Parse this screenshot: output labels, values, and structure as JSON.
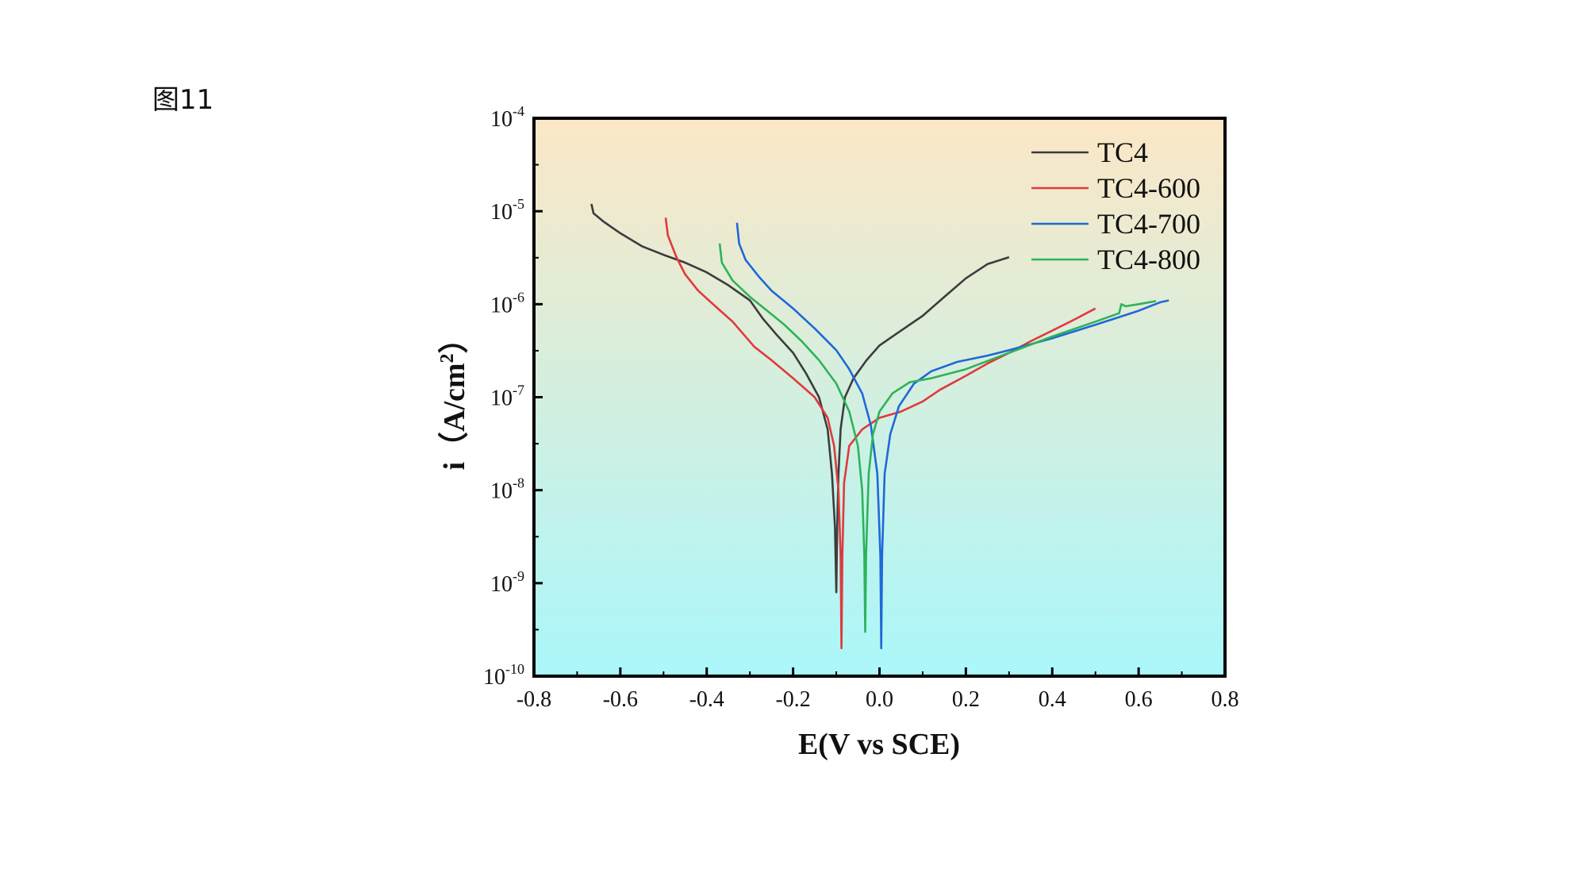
{
  "figure_label": "图11",
  "chart_data": {
    "type": "line",
    "title": "",
    "xlabel": "E(V vs SCE)",
    "ylabel_main": "i（A/cm",
    "ylabel_sup": "2",
    "ylabel_close": "）",
    "xlim": [
      -0.8,
      0.8
    ],
    "ylim_log10": [
      -10,
      -4
    ],
    "y_scale": "log",
    "x_ticks": [
      {
        "value": -0.8,
        "label": "-0.8"
      },
      {
        "value": -0.6,
        "label": "-0.6"
      },
      {
        "value": -0.4,
        "label": "-0.4"
      },
      {
        "value": -0.2,
        "label": "-0.2"
      },
      {
        "value": 0.0,
        "label": "0.0"
      },
      {
        "value": 0.2,
        "label": "0.2"
      },
      {
        "value": 0.4,
        "label": "0.4"
      },
      {
        "value": 0.6,
        "label": "0.6"
      },
      {
        "value": 0.8,
        "label": "0.8"
      }
    ],
    "y_ticks": [
      {
        "exp": -4,
        "base": "10",
        "sup": "-4"
      },
      {
        "exp": -5,
        "base": "10",
        "sup": "-5"
      },
      {
        "exp": -6,
        "base": "10",
        "sup": "-6"
      },
      {
        "exp": -7,
        "base": "10",
        "sup": "-7"
      },
      {
        "exp": -8,
        "base": "10",
        "sup": "-8"
      },
      {
        "exp": -9,
        "base": "10",
        "sup": "-9"
      },
      {
        "exp": -10,
        "base": "10",
        "sup": "-10"
      }
    ],
    "background_gradient": {
      "top": "#fce7c6",
      "bottom": "#aaf7fa"
    },
    "legend_position": "top-right",
    "grid": false,
    "series": [
      {
        "name": "TC4",
        "color": "#3c3c3c",
        "points": [
          [
            -0.667,
            1.2e-05
          ],
          [
            -0.662,
            9.5e-06
          ],
          [
            -0.64,
            7.8e-06
          ],
          [
            -0.6,
            5.8e-06
          ],
          [
            -0.55,
            4.2e-06
          ],
          [
            -0.5,
            3.4e-06
          ],
          [
            -0.45,
            2.8e-06
          ],
          [
            -0.4,
            2.2e-06
          ],
          [
            -0.35,
            1.6e-06
          ],
          [
            -0.3,
            1.1e-06
          ],
          [
            -0.27,
            7e-07
          ],
          [
            -0.24,
            4.8e-07
          ],
          [
            -0.2,
            3e-07
          ],
          [
            -0.17,
            1.8e-07
          ],
          [
            -0.14,
            1e-07
          ],
          [
            -0.12,
            4.5e-08
          ],
          [
            -0.11,
            1.5e-08
          ],
          [
            -0.103,
            4e-09
          ],
          [
            -0.1,
            8e-10
          ],
          [
            -0.098,
            4e-09
          ],
          [
            -0.095,
            1.5e-08
          ],
          [
            -0.09,
            4.5e-08
          ],
          [
            -0.08,
            1e-07
          ],
          [
            -0.06,
            1.6e-07
          ],
          [
            -0.03,
            2.5e-07
          ],
          [
            0.0,
            3.6e-07
          ],
          [
            0.05,
            5.2e-07
          ],
          [
            0.1,
            7.5e-07
          ],
          [
            0.15,
            1.2e-06
          ],
          [
            0.2,
            1.9e-06
          ],
          [
            0.25,
            2.7e-06
          ],
          [
            0.3,
            3.2e-06
          ]
        ]
      },
      {
        "name": "TC4-600",
        "color": "#e03a3c",
        "points": [
          [
            -0.495,
            8.5e-06
          ],
          [
            -0.49,
            5.5e-06
          ],
          [
            -0.47,
            3.2e-06
          ],
          [
            -0.45,
            2.1e-06
          ],
          [
            -0.42,
            1.4e-06
          ],
          [
            -0.38,
            9.5e-07
          ],
          [
            -0.34,
            6.5e-07
          ],
          [
            -0.29,
            3.5e-07
          ],
          [
            -0.25,
            2.5e-07
          ],
          [
            -0.2,
            1.6e-07
          ],
          [
            -0.15,
            1e-07
          ],
          [
            -0.12,
            6e-08
          ],
          [
            -0.105,
            3e-08
          ],
          [
            -0.095,
            1e-08
          ],
          [
            -0.09,
            2e-09
          ],
          [
            -0.088,
            2e-10
          ],
          [
            -0.086,
            2e-09
          ],
          [
            -0.082,
            1.2e-08
          ],
          [
            -0.07,
            3e-08
          ],
          [
            -0.04,
            4.5e-08
          ],
          [
            0.0,
            6e-08
          ],
          [
            0.05,
            7e-08
          ],
          [
            0.1,
            9e-08
          ],
          [
            0.14,
            1.2e-07
          ],
          [
            0.2,
            1.7e-07
          ],
          [
            0.25,
            2.3e-07
          ],
          [
            0.3,
            3e-07
          ],
          [
            0.35,
            4e-07
          ],
          [
            0.4,
            5.2e-07
          ],
          [
            0.45,
            6.8e-07
          ],
          [
            0.5,
            9e-07
          ]
        ]
      },
      {
        "name": "TC4-700",
        "color": "#1f68d8",
        "points": [
          [
            -0.33,
            7.5e-06
          ],
          [
            -0.325,
            4.5e-06
          ],
          [
            -0.31,
            3e-06
          ],
          [
            -0.28,
            2e-06
          ],
          [
            -0.25,
            1.4e-06
          ],
          [
            -0.2,
            9e-07
          ],
          [
            -0.15,
            5.5e-07
          ],
          [
            -0.1,
            3.2e-07
          ],
          [
            -0.07,
            2e-07
          ],
          [
            -0.04,
            1.1e-07
          ],
          [
            -0.02,
            5e-08
          ],
          [
            -0.005,
            1.5e-08
          ],
          [
            0.002,
            2e-09
          ],
          [
            0.004,
            2e-10
          ],
          [
            0.006,
            2e-09
          ],
          [
            0.012,
            1.5e-08
          ],
          [
            0.025,
            4e-08
          ],
          [
            0.045,
            8e-08
          ],
          [
            0.08,
            1.4e-07
          ],
          [
            0.12,
            1.9e-07
          ],
          [
            0.18,
            2.4e-07
          ],
          [
            0.25,
            2.8e-07
          ],
          [
            0.3,
            3.2e-07
          ],
          [
            0.4,
            4.3e-07
          ],
          [
            0.5,
            6e-07
          ],
          [
            0.6,
            8.5e-07
          ],
          [
            0.65,
            1.05e-06
          ],
          [
            0.67,
            1.1e-06
          ]
        ]
      },
      {
        "name": "TC4-800",
        "color": "#2db35a",
        "points": [
          [
            -0.37,
            4.5e-06
          ],
          [
            -0.365,
            2.8e-06
          ],
          [
            -0.34,
            1.8e-06
          ],
          [
            -0.3,
            1.2e-06
          ],
          [
            -0.26,
            8.5e-07
          ],
          [
            -0.22,
            6e-07
          ],
          [
            -0.18,
            4e-07
          ],
          [
            -0.14,
            2.5e-07
          ],
          [
            -0.1,
            1.4e-07
          ],
          [
            -0.07,
            7e-08
          ],
          [
            -0.05,
            3e-08
          ],
          [
            -0.04,
            1e-08
          ],
          [
            -0.035,
            2e-09
          ],
          [
            -0.033,
            3e-10
          ],
          [
            -0.031,
            2e-09
          ],
          [
            -0.025,
            1.5e-08
          ],
          [
            -0.015,
            4e-08
          ],
          [
            0.0,
            7e-08
          ],
          [
            0.03,
            1.1e-07
          ],
          [
            0.07,
            1.45e-07
          ],
          [
            0.12,
            1.6e-07
          ],
          [
            0.2,
            2e-07
          ],
          [
            0.3,
            3e-07
          ],
          [
            0.4,
            4.5e-07
          ],
          [
            0.5,
            6.5e-07
          ],
          [
            0.555,
            8e-07
          ],
          [
            0.56,
            1e-06
          ],
          [
            0.57,
            9.5e-07
          ],
          [
            0.6,
            1e-06
          ],
          [
            0.64,
            1.08e-06
          ]
        ]
      }
    ]
  }
}
